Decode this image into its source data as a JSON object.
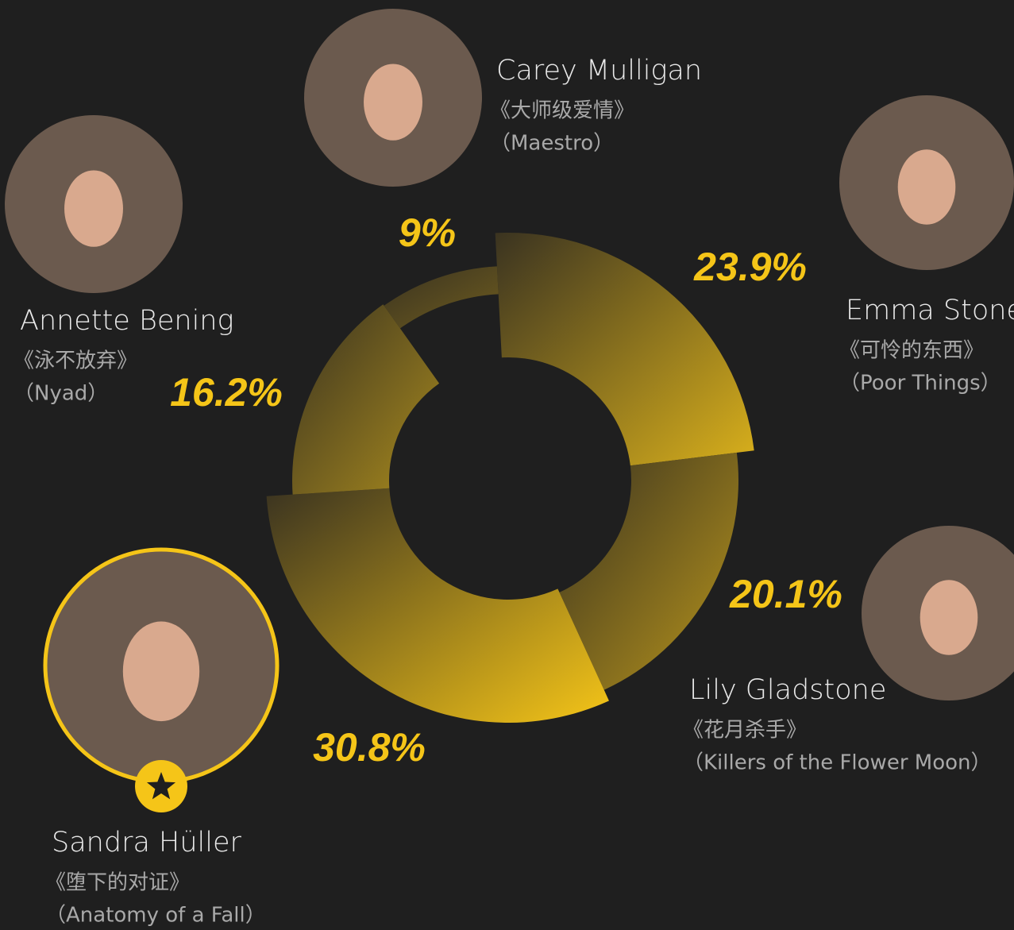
{
  "chart_data": {
    "type": "pie",
    "categories": [
      "Emma Stone",
      "Lily Gladstone",
      "Sandra Hüller",
      "Annette Bening",
      "Carey Mulligan"
    ],
    "films_cn": [
      "《可怜的东西》",
      "《花月杀手》",
      "《堕下的对证》",
      "《泳不放弃》",
      "《大师级爱情》"
    ],
    "films_en": [
      "（Poor Things）",
      "（Killers of the Flower Moon）",
      "（Anatomy of a Fall）",
      "（Nyad）",
      "（Maestro）"
    ],
    "values": [
      23.9,
      20.1,
      30.8,
      16.2,
      9
    ],
    "value_labels": [
      "23.9%",
      "20.1%",
      "30.8%",
      "16.2%",
      "9%"
    ],
    "colors": [
      "#d9b01c",
      "#b8951c",
      "#f5c518",
      "#a88a1e",
      "#6e5c1f"
    ],
    "label_color": "#f5c518"
  }
}
